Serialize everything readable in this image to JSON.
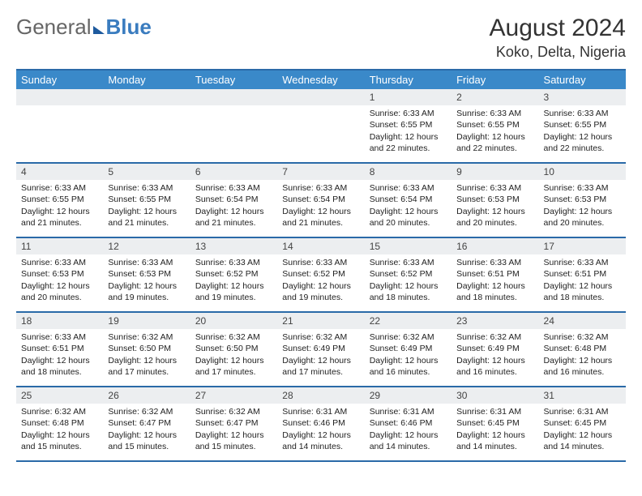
{
  "logo": {
    "text1": "General",
    "text2": "Blue"
  },
  "title": "August 2024",
  "location": "Koko, Delta, Nigeria",
  "day_names": [
    "Sunday",
    "Monday",
    "Tuesday",
    "Wednesday",
    "Thursday",
    "Friday",
    "Saturday"
  ],
  "colors": {
    "header_bg": "#3a89c9",
    "header_border": "#2a6aa8",
    "daynum_bg": "#eceef0"
  },
  "weeks": [
    [
      {
        "day": "",
        "lines": []
      },
      {
        "day": "",
        "lines": []
      },
      {
        "day": "",
        "lines": []
      },
      {
        "day": "",
        "lines": []
      },
      {
        "day": "1",
        "lines": [
          "Sunrise: 6:33 AM",
          "Sunset: 6:55 PM",
          "Daylight: 12 hours and 22 minutes."
        ]
      },
      {
        "day": "2",
        "lines": [
          "Sunrise: 6:33 AM",
          "Sunset: 6:55 PM",
          "Daylight: 12 hours and 22 minutes."
        ]
      },
      {
        "day": "3",
        "lines": [
          "Sunrise: 6:33 AM",
          "Sunset: 6:55 PM",
          "Daylight: 12 hours and 22 minutes."
        ]
      }
    ],
    [
      {
        "day": "4",
        "lines": [
          "Sunrise: 6:33 AM",
          "Sunset: 6:55 PM",
          "Daylight: 12 hours and 21 minutes."
        ]
      },
      {
        "day": "5",
        "lines": [
          "Sunrise: 6:33 AM",
          "Sunset: 6:55 PM",
          "Daylight: 12 hours and 21 minutes."
        ]
      },
      {
        "day": "6",
        "lines": [
          "Sunrise: 6:33 AM",
          "Sunset: 6:54 PM",
          "Daylight: 12 hours and 21 minutes."
        ]
      },
      {
        "day": "7",
        "lines": [
          "Sunrise: 6:33 AM",
          "Sunset: 6:54 PM",
          "Daylight: 12 hours and 21 minutes."
        ]
      },
      {
        "day": "8",
        "lines": [
          "Sunrise: 6:33 AM",
          "Sunset: 6:54 PM",
          "Daylight: 12 hours and 20 minutes."
        ]
      },
      {
        "day": "9",
        "lines": [
          "Sunrise: 6:33 AM",
          "Sunset: 6:53 PM",
          "Daylight: 12 hours and 20 minutes."
        ]
      },
      {
        "day": "10",
        "lines": [
          "Sunrise: 6:33 AM",
          "Sunset: 6:53 PM",
          "Daylight: 12 hours and 20 minutes."
        ]
      }
    ],
    [
      {
        "day": "11",
        "lines": [
          "Sunrise: 6:33 AM",
          "Sunset: 6:53 PM",
          "Daylight: 12 hours and 20 minutes."
        ]
      },
      {
        "day": "12",
        "lines": [
          "Sunrise: 6:33 AM",
          "Sunset: 6:53 PM",
          "Daylight: 12 hours and 19 minutes."
        ]
      },
      {
        "day": "13",
        "lines": [
          "Sunrise: 6:33 AM",
          "Sunset: 6:52 PM",
          "Daylight: 12 hours and 19 minutes."
        ]
      },
      {
        "day": "14",
        "lines": [
          "Sunrise: 6:33 AM",
          "Sunset: 6:52 PM",
          "Daylight: 12 hours and 19 minutes."
        ]
      },
      {
        "day": "15",
        "lines": [
          "Sunrise: 6:33 AM",
          "Sunset: 6:52 PM",
          "Daylight: 12 hours and 18 minutes."
        ]
      },
      {
        "day": "16",
        "lines": [
          "Sunrise: 6:33 AM",
          "Sunset: 6:51 PM",
          "Daylight: 12 hours and 18 minutes."
        ]
      },
      {
        "day": "17",
        "lines": [
          "Sunrise: 6:33 AM",
          "Sunset: 6:51 PM",
          "Daylight: 12 hours and 18 minutes."
        ]
      }
    ],
    [
      {
        "day": "18",
        "lines": [
          "Sunrise: 6:33 AM",
          "Sunset: 6:51 PM",
          "Daylight: 12 hours and 18 minutes."
        ]
      },
      {
        "day": "19",
        "lines": [
          "Sunrise: 6:32 AM",
          "Sunset: 6:50 PM",
          "Daylight: 12 hours and 17 minutes."
        ]
      },
      {
        "day": "20",
        "lines": [
          "Sunrise: 6:32 AM",
          "Sunset: 6:50 PM",
          "Daylight: 12 hours and 17 minutes."
        ]
      },
      {
        "day": "21",
        "lines": [
          "Sunrise: 6:32 AM",
          "Sunset: 6:49 PM",
          "Daylight: 12 hours and 17 minutes."
        ]
      },
      {
        "day": "22",
        "lines": [
          "Sunrise: 6:32 AM",
          "Sunset: 6:49 PM",
          "Daylight: 12 hours and 16 minutes."
        ]
      },
      {
        "day": "23",
        "lines": [
          "Sunrise: 6:32 AM",
          "Sunset: 6:49 PM",
          "Daylight: 12 hours and 16 minutes."
        ]
      },
      {
        "day": "24",
        "lines": [
          "Sunrise: 6:32 AM",
          "Sunset: 6:48 PM",
          "Daylight: 12 hours and 16 minutes."
        ]
      }
    ],
    [
      {
        "day": "25",
        "lines": [
          "Sunrise: 6:32 AM",
          "Sunset: 6:48 PM",
          "Daylight: 12 hours and 15 minutes."
        ]
      },
      {
        "day": "26",
        "lines": [
          "Sunrise: 6:32 AM",
          "Sunset: 6:47 PM",
          "Daylight: 12 hours and 15 minutes."
        ]
      },
      {
        "day": "27",
        "lines": [
          "Sunrise: 6:32 AM",
          "Sunset: 6:47 PM",
          "Daylight: 12 hours and 15 minutes."
        ]
      },
      {
        "day": "28",
        "lines": [
          "Sunrise: 6:31 AM",
          "Sunset: 6:46 PM",
          "Daylight: 12 hours and 14 minutes."
        ]
      },
      {
        "day": "29",
        "lines": [
          "Sunrise: 6:31 AM",
          "Sunset: 6:46 PM",
          "Daylight: 12 hours and 14 minutes."
        ]
      },
      {
        "day": "30",
        "lines": [
          "Sunrise: 6:31 AM",
          "Sunset: 6:45 PM",
          "Daylight: 12 hours and 14 minutes."
        ]
      },
      {
        "day": "31",
        "lines": [
          "Sunrise: 6:31 AM",
          "Sunset: 6:45 PM",
          "Daylight: 12 hours and 14 minutes."
        ]
      }
    ]
  ]
}
